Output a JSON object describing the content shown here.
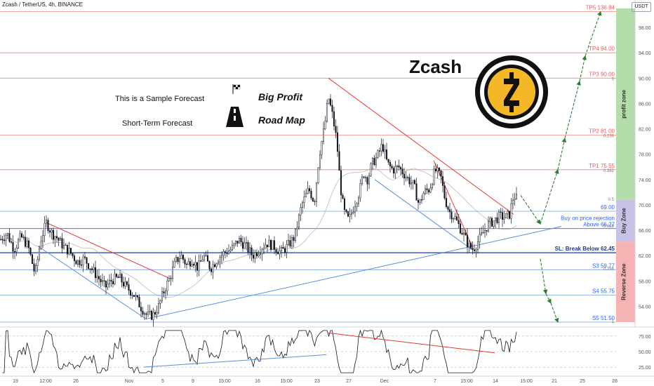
{
  "header": {
    "symbol_line": "Zcash / TetherUS, 4h, BINANCE",
    "unit_badge": "USDT"
  },
  "overlay": {
    "title": "Zcash",
    "note_sample": "This is a Sample Forecast",
    "note_term": "Short-Term Forecast",
    "brand_line1": "Big Profit",
    "brand_line2": "Road Map",
    "flag_icon": "checkered-flag-icon",
    "road_icon": "road-icon",
    "logo_icon": "zcash-logo-icon"
  },
  "colors": {
    "tp_line": "#f05a5a",
    "support_line": "#2962ff",
    "candle": "#131722",
    "trend_red": "#e53935",
    "trend_blue": "#5b8fd6",
    "profit_zone": "#b5dcab",
    "buy_zone": "#c8c2e6",
    "reverse_zone": "#f5b3b3",
    "forecast_arrow": "#2e7d32"
  },
  "chart_data": {
    "type": "candlestick",
    "timeframe": "4h",
    "ylim": [
      51.5,
      101
    ],
    "y_ticks": [
      54.0,
      58.0,
      62.0,
      66.0,
      70.0,
      74.0,
      78.0,
      82.0,
      86.0,
      90.0,
      94.0,
      98.0
    ],
    "x_ticks": [
      "19",
      "12:00",
      "26",
      "Nov",
      "5",
      "9",
      "15:00",
      "16",
      "15:00",
      "23",
      "27",
      "Dec",
      "7",
      "15:00",
      "14",
      "15:00",
      "21",
      "25",
      "28"
    ],
    "levels": [
      {
        "label": "TP5 136.84",
        "value": 100.5,
        "kind": "tp"
      },
      {
        "label": "TP4 94.00",
        "value": 94.0,
        "kind": "tp"
      },
      {
        "label": "TP3 90.00",
        "value": 90.0,
        "kind": "tp"
      },
      {
        "label": "TP2 81.00",
        "value": 81.0,
        "kind": "tp"
      },
      {
        "label": "TP1 75.55",
        "value": 75.55,
        "kind": "tp"
      },
      {
        "label": "69.00",
        "value": 69.0,
        "kind": "info"
      },
      {
        "label": "Buy on price rejection",
        "value": 67.3,
        "kind": "info"
      },
      {
        "label": "Above 66.27",
        "value": 66.27,
        "kind": "support"
      },
      {
        "label": "SL: Break Below 62.45",
        "value": 62.45,
        "kind": "stop"
      },
      {
        "label": "S3 59.77",
        "value": 59.77,
        "kind": "info"
      },
      {
        "label": "S4 55.75",
        "value": 55.75,
        "kind": "info"
      },
      {
        "label": "S5 51.50",
        "value": 51.5,
        "kind": "info"
      }
    ],
    "fib_labels": [
      "0",
      "0.236",
      "0.382",
      "0.5",
      "0.618",
      "0.786",
      "1"
    ],
    "zones": [
      {
        "name": "profit zone",
        "from": 70.8,
        "to": 101.0
      },
      {
        "name": "Buy Zone",
        "from": 64.2,
        "to": 70.8
      },
      {
        "name": "Reverse Zone",
        "from": 51.5,
        "to": 64.2
      }
    ],
    "price_points": [
      [
        0,
        64.5
      ],
      [
        10,
        65.5
      ],
      [
        20,
        63.0
      ],
      [
        30,
        65.0
      ],
      [
        40,
        63.5
      ],
      [
        50,
        59.0
      ],
      [
        58,
        64.5
      ],
      [
        66,
        67.2
      ],
      [
        74,
        65.5
      ],
      [
        80,
        65.0
      ],
      [
        90,
        63.5
      ],
      [
        100,
        62.5
      ],
      [
        110,
        61.0
      ],
      [
        120,
        61.5
      ],
      [
        130,
        60.0
      ],
      [
        140,
        58.5
      ],
      [
        150,
        57.0
      ],
      [
        160,
        58.2
      ],
      [
        170,
        58.5
      ],
      [
        180,
        57.0
      ],
      [
        190,
        56.0
      ],
      [
        200,
        54.0
      ],
      [
        210,
        52.5
      ],
      [
        218,
        52.6
      ],
      [
        226,
        54.0
      ],
      [
        234,
        56.5
      ],
      [
        242,
        58.5
      ],
      [
        250,
        61.0
      ],
      [
        258,
        62.0
      ],
      [
        266,
        60.5
      ],
      [
        274,
        61.5
      ],
      [
        282,
        60.0
      ],
      [
        290,
        62.0
      ],
      [
        300,
        60.0
      ],
      [
        310,
        61.5
      ],
      [
        320,
        62.5
      ],
      [
        330,
        63.0
      ],
      [
        340,
        64.5
      ],
      [
        350,
        63.5
      ],
      [
        360,
        62.0
      ],
      [
        370,
        63.0
      ],
      [
        380,
        64.0
      ],
      [
        390,
        63.5
      ],
      [
        400,
        62.5
      ],
      [
        410,
        63.5
      ],
      [
        420,
        65.0
      ],
      [
        430,
        70.0
      ],
      [
        440,
        72.5
      ],
      [
        448,
        70.5
      ],
      [
        455,
        78.0
      ],
      [
        462,
        82.0
      ],
      [
        468,
        87.0
      ],
      [
        474,
        84.0
      ],
      [
        480,
        80.0
      ],
      [
        485,
        73.0
      ],
      [
        490,
        69.0
      ],
      [
        497,
        67.5
      ],
      [
        505,
        70.0
      ],
      [
        512,
        72.0
      ],
      [
        518,
        75.0
      ],
      [
        524,
        74.0
      ],
      [
        530,
        76.5
      ],
      [
        537,
        77.5
      ],
      [
        545,
        79.5
      ],
      [
        552,
        76.5
      ],
      [
        560,
        75.5
      ],
      [
        568,
        76.0
      ],
      [
        575,
        75.0
      ],
      [
        582,
        74.0
      ],
      [
        590,
        73.0
      ],
      [
        597,
        70.0
      ],
      [
        604,
        72.0
      ],
      [
        612,
        72.5
      ],
      [
        620,
        75.5
      ],
      [
        628,
        74.5
      ],
      [
        634,
        71.0
      ],
      [
        640,
        69.0
      ],
      [
        648,
        68.0
      ],
      [
        655,
        66.5
      ],
      [
        662,
        65.0
      ],
      [
        668,
        63.5
      ],
      [
        674,
        63.0
      ],
      [
        680,
        64.0
      ],
      [
        688,
        65.5
      ],
      [
        696,
        67.0
      ],
      [
        704,
        67.5
      ],
      [
        712,
        68.2
      ],
      [
        720,
        68.0
      ],
      [
        726,
        68.5
      ],
      [
        732,
        71.5
      ],
      [
        736,
        71.0
      ]
    ],
    "rsi": {
      "ticks": [
        75.0,
        50.0,
        25.0
      ],
      "ylim": [
        15,
        85
      ]
    }
  }
}
